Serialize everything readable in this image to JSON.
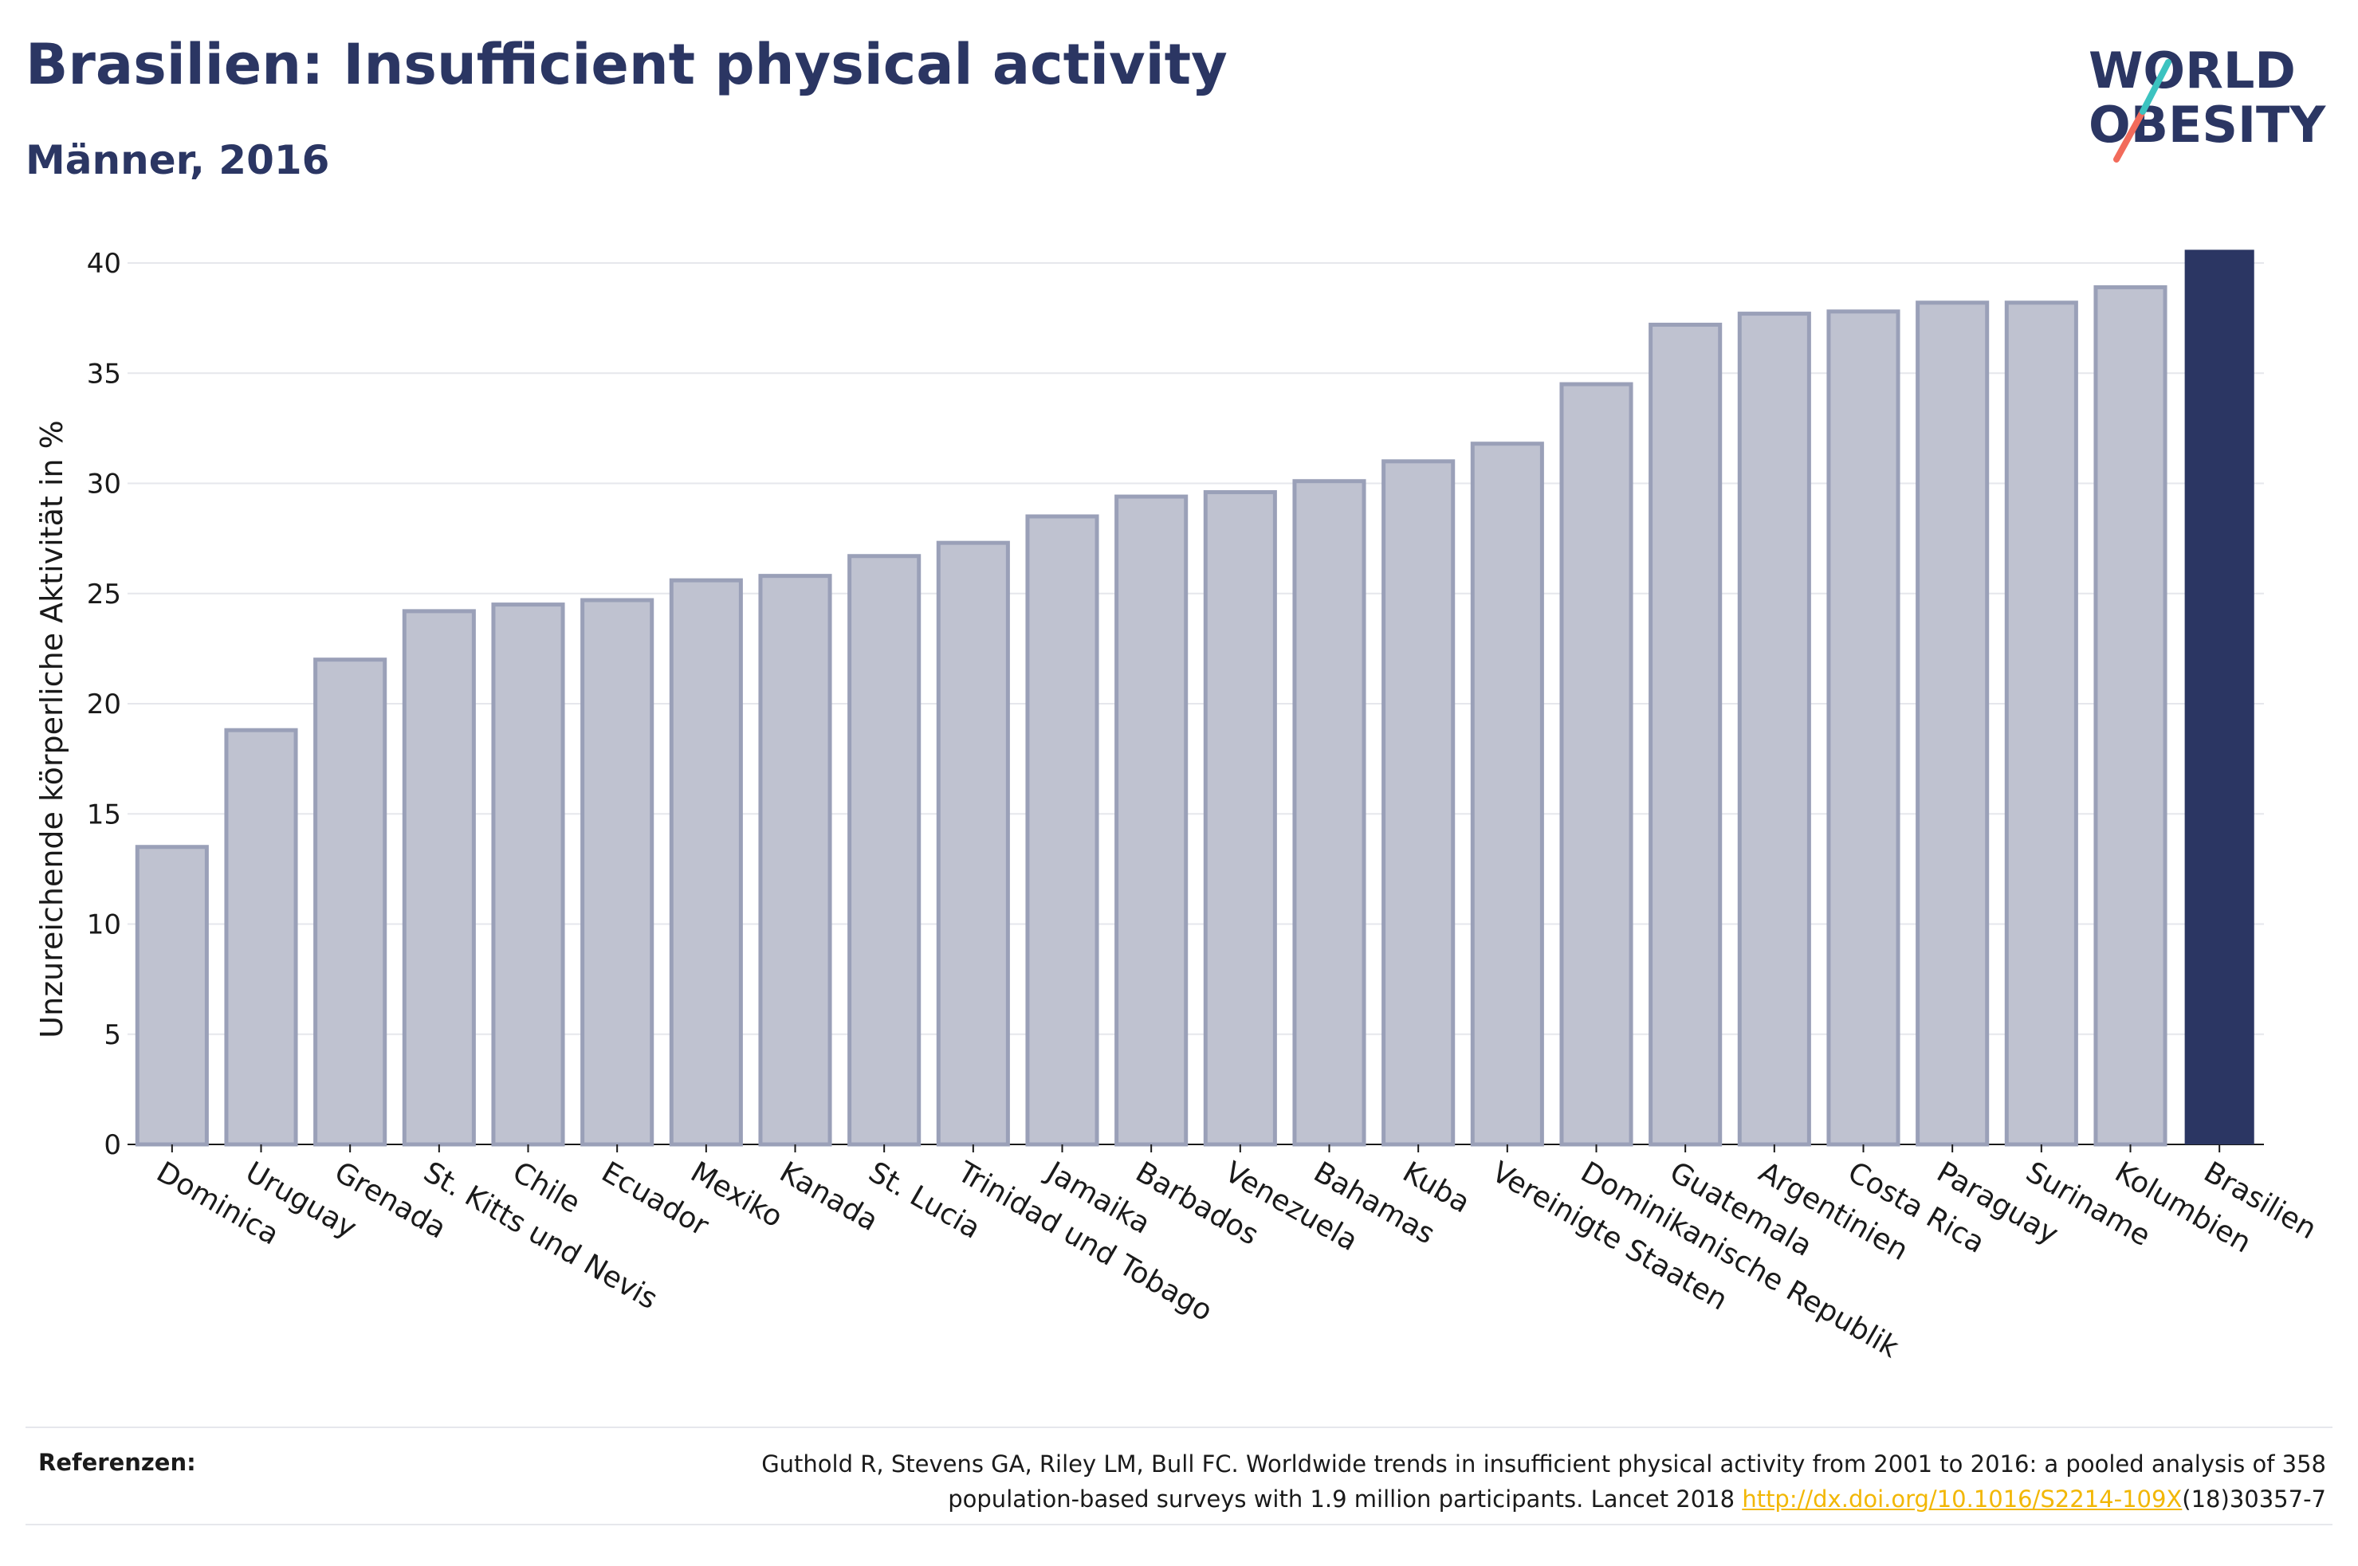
{
  "header": {
    "title": "Brasilien: Insufficient physical activity",
    "subtitle": "Männer, 2016"
  },
  "logo": {
    "line1": "WORLD",
    "line2": "OBESITY",
    "accent_colors": [
      "#3cc3c0",
      "#f26b5b"
    ]
  },
  "colors": {
    "bar": "#bfc2d0",
    "bar_stroke": "#9aa0b8",
    "highlight": "#2b3663",
    "grid": "#e6e7ec"
  },
  "chart_data": {
    "type": "bar",
    "title": "Brasilien: Insufficient physical activity",
    "subtitle": "Männer, 2016",
    "xlabel": "",
    "ylabel": "Unzureichende körperliche Aktivität in %",
    "ylim": [
      0,
      40
    ],
    "yticks": [
      0,
      5,
      10,
      15,
      20,
      25,
      30,
      35,
      40
    ],
    "grid": true,
    "highlight": "Brasilien",
    "categories": [
      "Dominica",
      "Uruguay",
      "Grenada",
      "St. Kitts und Nevis",
      "Chile",
      "Ecuador",
      "Mexiko",
      "Kanada",
      "St. Lucia",
      "Trinidad und Tobago",
      "Jamaika",
      "Barbados",
      "Venezuela",
      "Bahamas",
      "Kuba",
      "Vereinigte Staaten",
      "Dominikanische Republik",
      "Guatemala",
      "Argentinien",
      "Costa Rica",
      "Paraguay",
      "Suriname",
      "Kolumbien",
      "Brasilien"
    ],
    "values": [
      13.5,
      18.8,
      22.0,
      24.2,
      24.5,
      24.7,
      25.6,
      25.8,
      26.7,
      27.3,
      28.5,
      29.4,
      29.6,
      30.1,
      31.0,
      31.8,
      34.5,
      37.2,
      37.7,
      37.8,
      38.2,
      38.2,
      38.9,
      40.6
    ]
  },
  "footer": {
    "label": "Referenzen:",
    "text": "Guthold R, Stevens GA, Riley LM, Bull FC. Worldwide trends in insufficient physical activity from 2001 to 2016: a pooled analysis of 358",
    "text2": "population-based surveys with 1.9 million participants. Lancet 2018 ",
    "link": "http://dx.doi.org/10.1016/S2214-109X",
    "text_after": "(18)30357-7"
  }
}
